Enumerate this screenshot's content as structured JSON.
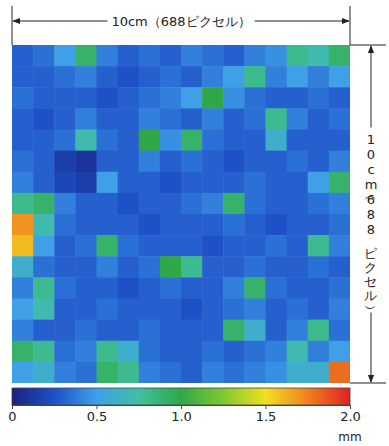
{
  "chart_data": {
    "type": "heatmap",
    "tick_labels": false,
    "x_label": "10cm（688ピクセル）",
    "y_label": "10cm（688ピクセル）",
    "cells": [
      [
        0.3,
        0.35,
        0.5,
        0.9,
        0.4,
        0.3,
        0.35,
        0.3,
        0.4,
        0.35,
        0.3,
        0.4,
        0.45,
        0.8,
        0.7,
        0.9
      ],
      [
        0.3,
        0.3,
        0.35,
        0.4,
        0.3,
        0.25,
        0.3,
        0.35,
        0.3,
        0.4,
        0.5,
        0.8,
        0.4,
        0.5,
        0.4,
        0.5
      ],
      [
        0.35,
        0.3,
        0.3,
        0.3,
        0.25,
        0.3,
        0.35,
        0.4,
        0.5,
        1.0,
        0.45,
        0.35,
        0.3,
        0.3,
        0.35,
        0.3
      ],
      [
        0.3,
        0.25,
        0.3,
        0.4,
        0.3,
        0.3,
        0.4,
        0.35,
        0.3,
        0.4,
        0.3,
        0.35,
        0.8,
        0.4,
        0.3,
        0.35
      ],
      [
        0.3,
        0.3,
        0.35,
        0.7,
        0.35,
        0.3,
        1.0,
        0.45,
        0.9,
        0.35,
        0.3,
        0.3,
        0.6,
        0.3,
        0.3,
        0.3
      ],
      [
        0.35,
        0.3,
        0.15,
        0.1,
        0.3,
        0.3,
        0.4,
        0.3,
        0.35,
        0.3,
        0.25,
        0.3,
        0.3,
        0.35,
        0.3,
        0.4
      ],
      [
        0.4,
        0.3,
        0.2,
        0.15,
        0.5,
        0.3,
        0.3,
        0.25,
        0.3,
        0.3,
        0.3,
        0.35,
        0.3,
        0.3,
        0.5,
        0.9
      ],
      [
        0.8,
        0.9,
        0.4,
        0.3,
        0.3,
        0.25,
        0.3,
        0.3,
        0.35,
        0.4,
        0.9,
        0.35,
        0.3,
        0.3,
        0.35,
        0.4
      ],
      [
        1.7,
        0.7,
        0.35,
        0.3,
        0.3,
        0.3,
        0.25,
        0.3,
        0.3,
        0.3,
        0.35,
        0.3,
        0.25,
        0.3,
        0.3,
        0.35
      ],
      [
        1.6,
        0.5,
        0.3,
        0.35,
        0.9,
        0.35,
        0.3,
        0.3,
        0.3,
        0.25,
        0.3,
        0.3,
        0.35,
        0.3,
        0.8,
        0.4
      ],
      [
        0.6,
        0.35,
        0.3,
        0.3,
        0.4,
        0.3,
        0.35,
        1.0,
        0.8,
        0.3,
        0.3,
        0.35,
        0.3,
        0.3,
        0.35,
        0.3
      ],
      [
        0.4,
        0.8,
        0.35,
        0.3,
        0.3,
        0.25,
        0.3,
        0.35,
        0.3,
        0.3,
        0.4,
        0.9,
        0.35,
        0.3,
        0.3,
        0.35
      ],
      [
        0.5,
        0.7,
        0.3,
        0.3,
        0.35,
        0.3,
        0.3,
        0.3,
        0.25,
        0.3,
        0.35,
        0.4,
        0.3,
        0.35,
        0.3,
        0.4
      ],
      [
        0.4,
        0.3,
        0.3,
        0.35,
        0.3,
        0.3,
        0.35,
        0.3,
        0.3,
        0.3,
        0.9,
        0.6,
        0.3,
        0.4,
        0.8,
        0.35
      ],
      [
        0.9,
        0.8,
        0.35,
        0.4,
        0.8,
        0.6,
        0.35,
        0.3,
        0.3,
        0.35,
        0.3,
        0.35,
        0.4,
        0.7,
        0.4,
        0.5
      ],
      [
        0.5,
        0.6,
        0.4,
        0.35,
        0.9,
        0.8,
        0.4,
        0.35,
        0.3,
        0.4,
        0.35,
        0.4,
        0.45,
        0.6,
        0.6,
        1.8
      ]
    ],
    "colorbar": {
      "range": [
        0,
        2
      ],
      "ticks": [
        0,
        0.5,
        {
          "value": 1,
          "label": "1.0"
        },
        1.5,
        {
          "value": 2,
          "label": "2.0"
        }
      ],
      "label": "mm"
    }
  }
}
